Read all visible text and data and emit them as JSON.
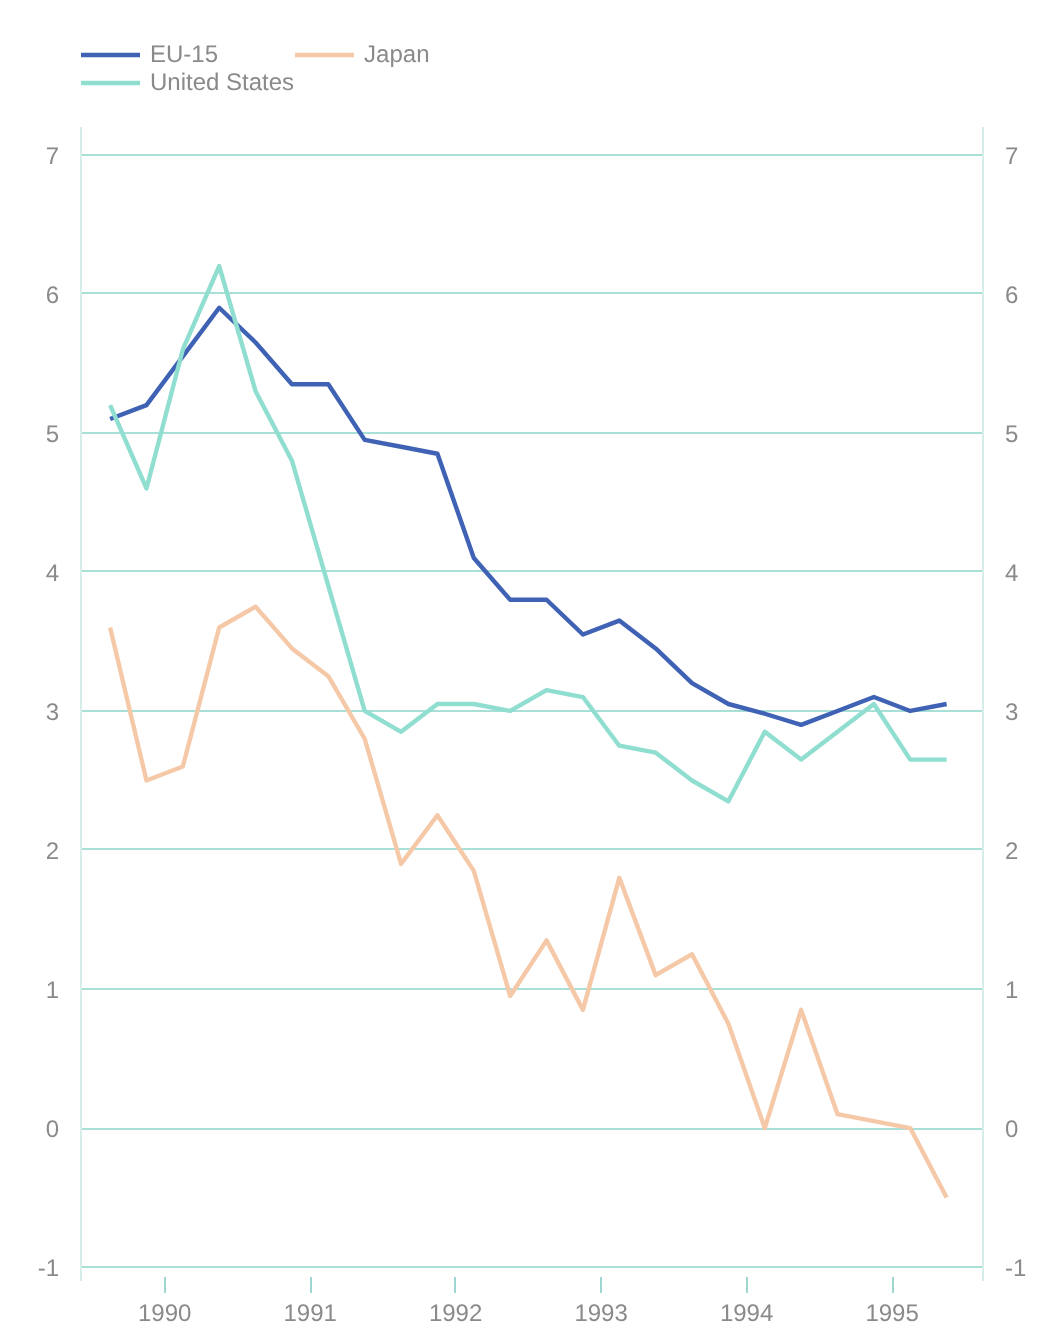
{
  "chart_data": {
    "type": "line",
    "x": [
      1990,
      1990.25,
      1990.5,
      1990.75,
      1991,
      1991.25,
      1991.5,
      1991.75,
      1992,
      1992.25,
      1992.5,
      1992.75,
      1993,
      1993.25,
      1993.5,
      1993.75,
      1994,
      1994.25,
      1994.5,
      1994.75,
      1995,
      1995.25,
      1995.5,
      1995.75
    ],
    "series": [
      {
        "name": "EU-15",
        "color": "#3f62b4",
        "values": [
          5.1,
          5.2,
          5.55,
          5.9,
          5.65,
          5.35,
          5.35,
          4.95,
          4.9,
          4.85,
          4.1,
          3.8,
          3.8,
          3.55,
          3.65,
          3.45,
          3.2,
          3.05,
          2.98,
          2.9,
          3.0,
          3.1,
          3.0,
          3.05
        ]
      },
      {
        "name": "United States",
        "color": "#8fded0",
        "values": [
          5.2,
          4.6,
          5.6,
          6.2,
          5.3,
          4.8,
          3.9,
          3.0,
          2.85,
          3.05,
          3.05,
          3.0,
          3.15,
          3.1,
          2.75,
          2.7,
          2.5,
          2.35,
          2.85,
          2.65,
          2.85,
          3.05,
          2.65,
          2.65
        ]
      },
      {
        "name": "Japan",
        "color": "#f5c9a8",
        "values": [
          3.6,
          2.5,
          2.6,
          3.6,
          3.75,
          3.45,
          3.25,
          2.8,
          1.9,
          2.25,
          1.85,
          0.95,
          1.35,
          0.85,
          1.8,
          1.1,
          1.25,
          0.75,
          0.0,
          0.85,
          0.1,
          0.05,
          0.0,
          -0.5
        ]
      }
    ],
    "xlim": [
      1989.8,
      1996.0
    ],
    "xticks": [
      {
        "value": 1990.375,
        "label": "1990"
      },
      {
        "value": 1991.375,
        "label": "1991"
      },
      {
        "value": 1992.375,
        "label": "1992"
      },
      {
        "value": 1993.375,
        "label": "1993"
      },
      {
        "value": 1994.375,
        "label": "1994"
      },
      {
        "value": 1995.375,
        "label": "1995"
      }
    ],
    "ylim": [
      -1.1,
      7.2
    ],
    "yticks": [
      -1,
      0,
      1,
      2,
      3,
      4,
      5,
      6,
      7
    ],
    "y2lim": [
      -1.1,
      7.2
    ],
    "y2ticks": [
      -1,
      0,
      1,
      2,
      3,
      4,
      5,
      6,
      7
    ],
    "grid": "y",
    "legend": "top left",
    "marker": "none",
    "line_style": "solid"
  }
}
